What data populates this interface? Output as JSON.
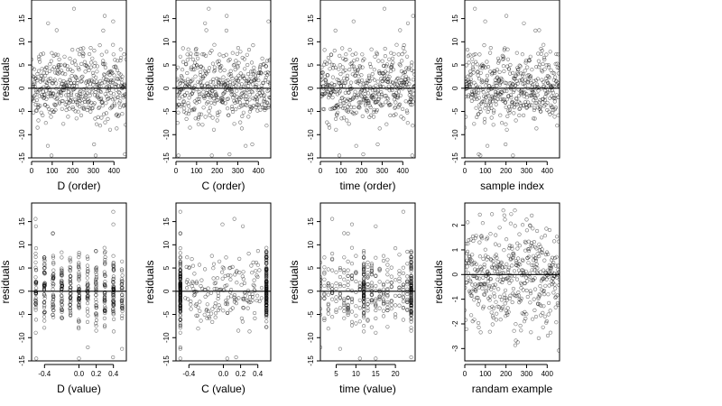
{
  "chart_data": [
    {
      "type": "scatter",
      "xlabel": "D (order)",
      "ylabel": "residuals",
      "xlim": [
        0,
        460
      ],
      "ylim": [
        -15,
        19
      ],
      "xticks": [
        "0",
        "100",
        "200",
        "300",
        "400"
      ],
      "yticks": [
        "-15",
        "-10",
        "-5",
        "0",
        "5",
        "10",
        "15"
      ],
      "reference_line": 0,
      "n_points": 460,
      "distribution": "centered near 0, spread about -7 to 8, a few outliers near 18 and -14"
    },
    {
      "type": "scatter",
      "xlabel": "C (order)",
      "ylabel": "residuals",
      "xlim": [
        0,
        460
      ],
      "ylim": [
        -15,
        19
      ],
      "xticks": [
        "0",
        "100",
        "200",
        "300",
        "400"
      ],
      "yticks": [
        "-15",
        "-10",
        "-5",
        "0",
        "5",
        "10",
        "15"
      ],
      "reference_line": 0,
      "n_points": 460,
      "distribution": "centered near 0, spread about -7 to 8, outliers near 18 and -14"
    },
    {
      "type": "scatter",
      "xlabel": "time (order)",
      "ylabel": "residuals",
      "xlim": [
        0,
        460
      ],
      "ylim": [
        -15,
        19
      ],
      "xticks": [
        "0",
        "100",
        "200",
        "300",
        "400"
      ],
      "yticks": [
        "-15",
        "-10",
        "-5",
        "0",
        "5",
        "10",
        "15"
      ],
      "reference_line": 0,
      "n_points": 460,
      "distribution": "centered near 0, spread about -7 to 8, outliers near 18 and -14"
    },
    {
      "type": "scatter",
      "xlabel": "sample index",
      "ylabel": "residuals",
      "xlim": [
        0,
        460
      ],
      "ylim": [
        -15,
        19
      ],
      "xticks": [
        "0",
        "100",
        "200",
        "300",
        "400"
      ],
      "yticks": [
        "-15",
        "-10",
        "-5",
        "0",
        "5",
        "10",
        "15"
      ],
      "reference_line": 0,
      "n_points": 460,
      "distribution": "centered near 0, spread about -7 to 8, outliers near 18 and -14"
    },
    {
      "type": "scatter",
      "xlabel": "D (value)",
      "ylabel": "residuals",
      "xlim": [
        -0.55,
        0.55
      ],
      "ylim": [
        -15,
        19
      ],
      "xticks": [
        "-0.4",
        "0.0",
        "0.2",
        "0.4"
      ],
      "yticks": [
        "-15",
        "-10",
        "-5",
        "0",
        "5",
        "10",
        "15"
      ],
      "reference_line": 0,
      "n_points": 460,
      "distribution": "points in vertical bands at discrete D values, centered near 0"
    },
    {
      "type": "scatter",
      "xlabel": "C (value)",
      "ylabel": "residuals",
      "xlim": [
        -0.55,
        0.55
      ],
      "ylim": [
        -15,
        19
      ],
      "xticks": [
        "-0.4",
        "0.0",
        "0.2",
        "0.4"
      ],
      "yticks": [
        "-15",
        "-10",
        "-5",
        "0",
        "5",
        "10",
        "15"
      ],
      "reference_line": 0,
      "n_points": 460,
      "distribution": "dense columns at C = -0.5 and 0.5, sparser in between"
    },
    {
      "type": "scatter",
      "xlabel": "time (value)",
      "ylabel": "residuals",
      "xlim": [
        1,
        25
      ],
      "ylim": [
        -15,
        19
      ],
      "xticks": [
        "5",
        "10",
        "15",
        "20"
      ],
      "yticks": [
        "-15",
        "-10",
        "-5",
        "0",
        "5",
        "10",
        "15"
      ],
      "reference_line": 0,
      "n_points": 460,
      "distribution": "vertical columns at integer times 1-24, dense columns at 12 and 24"
    },
    {
      "type": "scatter",
      "xlabel": "randam example",
      "ylabel": "residuals",
      "xlim": [
        0,
        460
      ],
      "ylim": [
        -3.5,
        2.9
      ],
      "xticks": [
        "0",
        "100",
        "200",
        "300",
        "400"
      ],
      "yticks": [
        "-3",
        "-2",
        "-1",
        "0",
        "1",
        "2"
      ],
      "reference_line": 0,
      "n_points": 460,
      "distribution": "standard normal noise, mean 0, sd 1"
    }
  ]
}
